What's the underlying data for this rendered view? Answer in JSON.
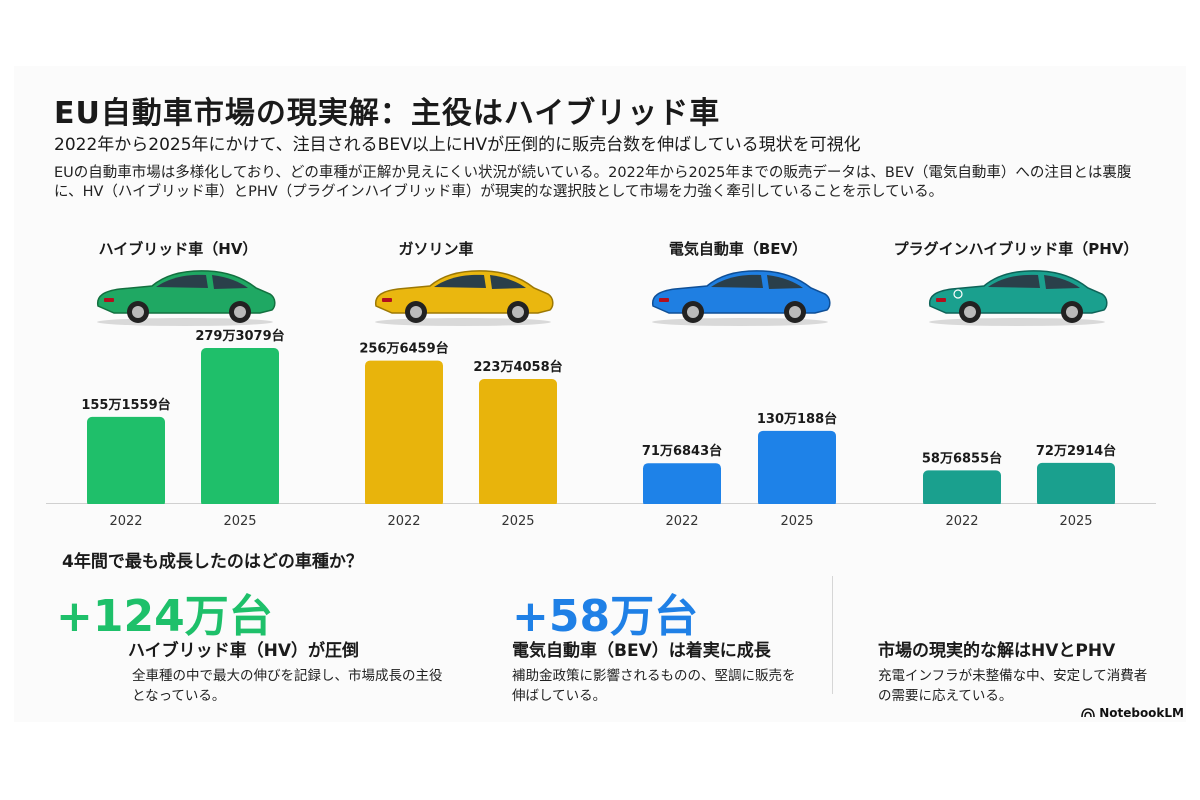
{
  "header": {
    "title": "EU自動車市場の現実解：主役はハイブリッド車",
    "subtitle": "2022年から2025年にかけて、注目されるBEV以上にHVが圧倒的に販売台数を伸ばしている現状を可視化",
    "description": "EUの自動車市場は多様化しており、どの車種が正解か見えにくい状況が続いている。2022年から2025年までの販売データは、BEV（電気自動車）への注目とは裏腹に、HV（ハイブリッド車）とPHV（プラグインハイブリッド車）が現実的な選択肢として市場を力強く牽引していることを示している。"
  },
  "colors": {
    "hv": "#1fbf6a",
    "gasoline": "#e8b40c",
    "bev": "#1e82e8",
    "phv": "#1aa08e",
    "big_green": "#1ec06a",
    "big_blue": "#1f80e6"
  },
  "chart_data": {
    "type": "bar",
    "title": "",
    "xlabel": "",
    "ylabel": "",
    "ylim": [
      0,
      3000000
    ],
    "grid": false,
    "legend": "none",
    "groups": [
      {
        "name": "ハイブリッド車（HV）",
        "car_color": "green",
        "bars": [
          {
            "x": "2022",
            "value": 1551559,
            "label": "155万1559台"
          },
          {
            "x": "2025",
            "value": 2793079,
            "label": "279万3079台"
          }
        ]
      },
      {
        "name": "ガソリン車",
        "car_color": "yellow",
        "bars": [
          {
            "x": "2022",
            "value": 2566459,
            "label": "256万6459台"
          },
          {
            "x": "2025",
            "value": 2234058,
            "label": "223万4058台"
          }
        ]
      },
      {
        "name": "電気自動車（BEV）",
        "car_color": "blue",
        "bars": [
          {
            "x": "2022",
            "value": 716843,
            "label": "71万6843台"
          },
          {
            "x": "2025",
            "value": 1300188,
            "label": "130万188台"
          }
        ]
      },
      {
        "name": "プラグインハイブリッド車（PHV）",
        "car_color": "teal",
        "bars": [
          {
            "x": "2022",
            "value": 586855,
            "label": "58万6855台"
          },
          {
            "x": "2025",
            "value": 722914,
            "label": "72万2914台"
          }
        ]
      }
    ]
  },
  "growth": {
    "question": "4年間で最も成長したのはどの車種か？",
    "items": [
      {
        "value": "+124万台",
        "heading": "ハイブリッド車（HV）が圧倒",
        "text": "全車種の中で最大の伸びを記録し、市場成長の主役となっている。"
      },
      {
        "value": "+58万台",
        "heading": "電気自動車（BEV）は着実に成長",
        "text": "補助金政策に影響されるものの、堅調に販売を伸ばしている。"
      },
      {
        "heading": "市場の現実的な解はHVとPHV",
        "text": "充電インフラが未整備な中、安定して消費者の需要に応えている。"
      }
    ]
  },
  "brand": {
    "name": "NotebookLM",
    "icon": "notebooklm-logo-icon"
  }
}
